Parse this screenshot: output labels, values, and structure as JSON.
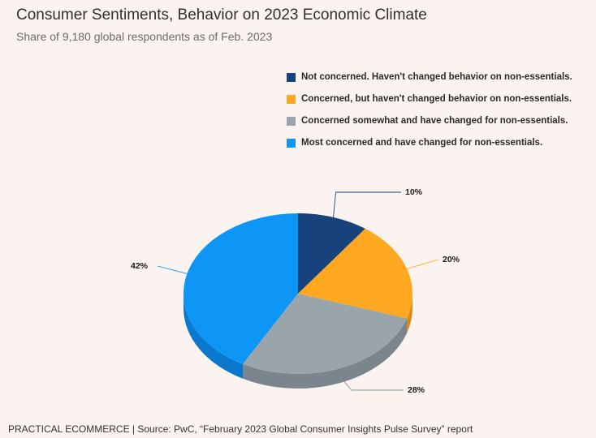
{
  "title": "Consumer Sentiments, Behavior on 2023 Economic Climate",
  "subtitle": "Share of 9,180 global respondents as of Feb. 2023",
  "footer": "PRACTICAL ECOMMERCE | Source: PwC, “February 2023 Global Consumer Insights Pulse Survey” report",
  "chart_data": {
    "type": "pie",
    "title": "Consumer Sentiments, Behavior on 2023 Economic Climate",
    "subtitle": "Share of 9,180 global respondents as of Feb. 2023",
    "legend_position": "top-right",
    "slices": [
      {
        "name": "Not concerned. Haven't changed behavior on non-essentials.",
        "value": 10,
        "label": "10%",
        "color": "#17427c",
        "side_color": "#0f2f5c"
      },
      {
        "name": "Concerned, but haven't changed behavior on non-essentials.",
        "value": 20,
        "label": "20%",
        "color": "#fea822",
        "side_color": "#d98c12"
      },
      {
        "name": "Concerned somewhat and have changed for non-essentials.",
        "value": 28,
        "label": "28%",
        "color": "#9aa4ab",
        "side_color": "#7b858d"
      },
      {
        "name": "Most concerned and have changed for non-essentials.",
        "value": 42,
        "label": "42%",
        "color": "#0e96f7",
        "side_color": "#0a78cc"
      }
    ]
  }
}
